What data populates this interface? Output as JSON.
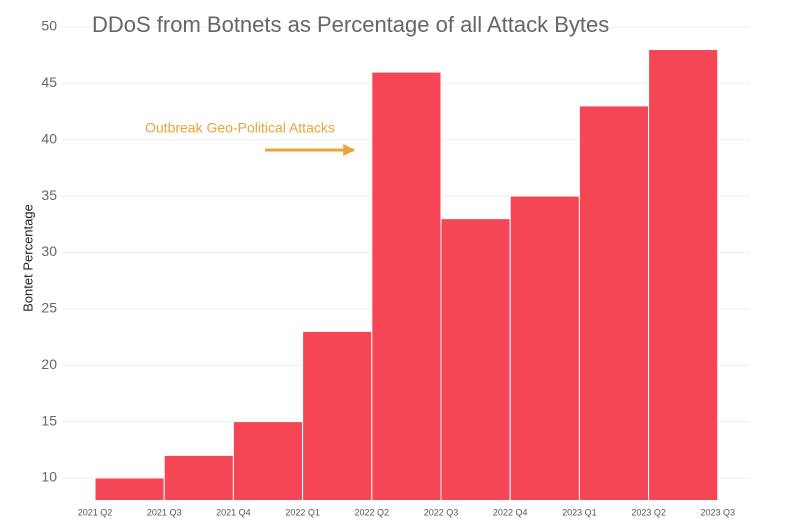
{
  "chart_data": {
    "type": "bar",
    "title": "DDoS from Botnets as Percentage of all Attack Bytes",
    "y_label": "Bontet Percentage",
    "annotation": "Outbreak Geo-Political Attacks",
    "annotation_color": "#e8a33a",
    "categories": [
      "2021 Q2",
      "2021 Q3",
      "2021 Q4",
      "2022 Q1",
      "2022 Q2",
      "2022 Q3",
      "2022 Q4",
      "2023 Q1",
      "2023 Q2",
      "2023 Q3"
    ],
    "values": [
      10,
      12,
      15,
      23,
      46,
      33,
      35,
      43,
      48,
      null
    ],
    "color": "#f44655",
    "ylim": [
      8,
      51
    ],
    "yticks": [
      10,
      15,
      20,
      25,
      30,
      35,
      40,
      45,
      50
    ],
    "grid": true
  }
}
